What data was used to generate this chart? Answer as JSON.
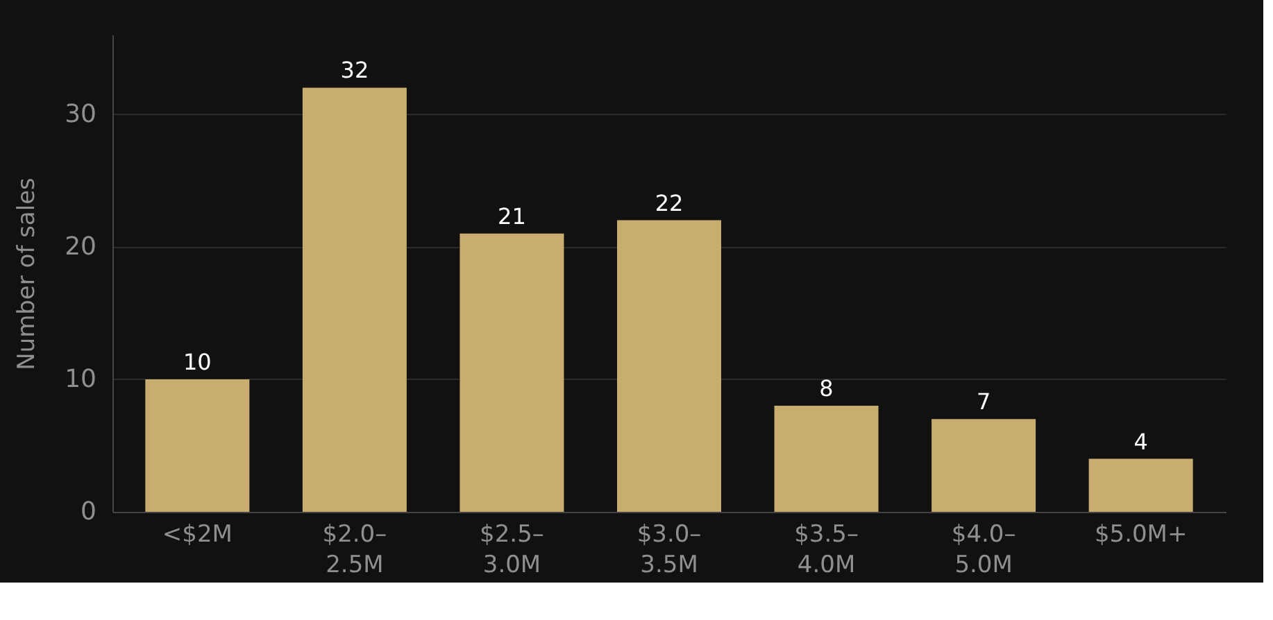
{
  "chart_data": {
    "type": "bar",
    "ylabel": "Number of sales",
    "categories": [
      "<$2M",
      "$2.0–\n2.5M",
      "$2.5–\n3.0M",
      "$3.0–\n3.5M",
      "$3.5–\n4.0M",
      "$4.0–\n5.0M",
      "$5.0M+"
    ],
    "values": [
      10,
      32,
      21,
      22,
      8,
      7,
      4
    ],
    "color": "#c9ac6f",
    "ylim": [
      0,
      36
    ],
    "yticks": [
      0,
      10,
      20,
      30
    ],
    "grid": "y",
    "data_labels": true
  }
}
